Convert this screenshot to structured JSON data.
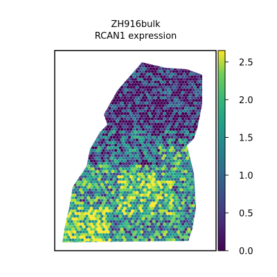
{
  "chart_data": {
    "type": "scatter",
    "title": "ZH916bulk",
    "subtitle": "RCAN1 expression",
    "xlabel": "",
    "ylabel": "",
    "grid": false,
    "marker": "hexagon",
    "colormap": "viridis",
    "colorbar": {
      "min": 0.0,
      "max": 2.65,
      "ticks": [
        {
          "value": 0.0,
          "label": "0.0"
        },
        {
          "value": 0.5,
          "label": "0.5"
        },
        {
          "value": 1.0,
          "label": "1.0"
        },
        {
          "value": 1.5,
          "label": "1.5"
        },
        {
          "value": 2.0,
          "label": "2.0"
        },
        {
          "value": 2.5,
          "label": "2.5"
        }
      ]
    },
    "colors": [
      "#440154",
      "#3b528b",
      "#21918c",
      "#5ec962",
      "#fde725"
    ]
  }
}
